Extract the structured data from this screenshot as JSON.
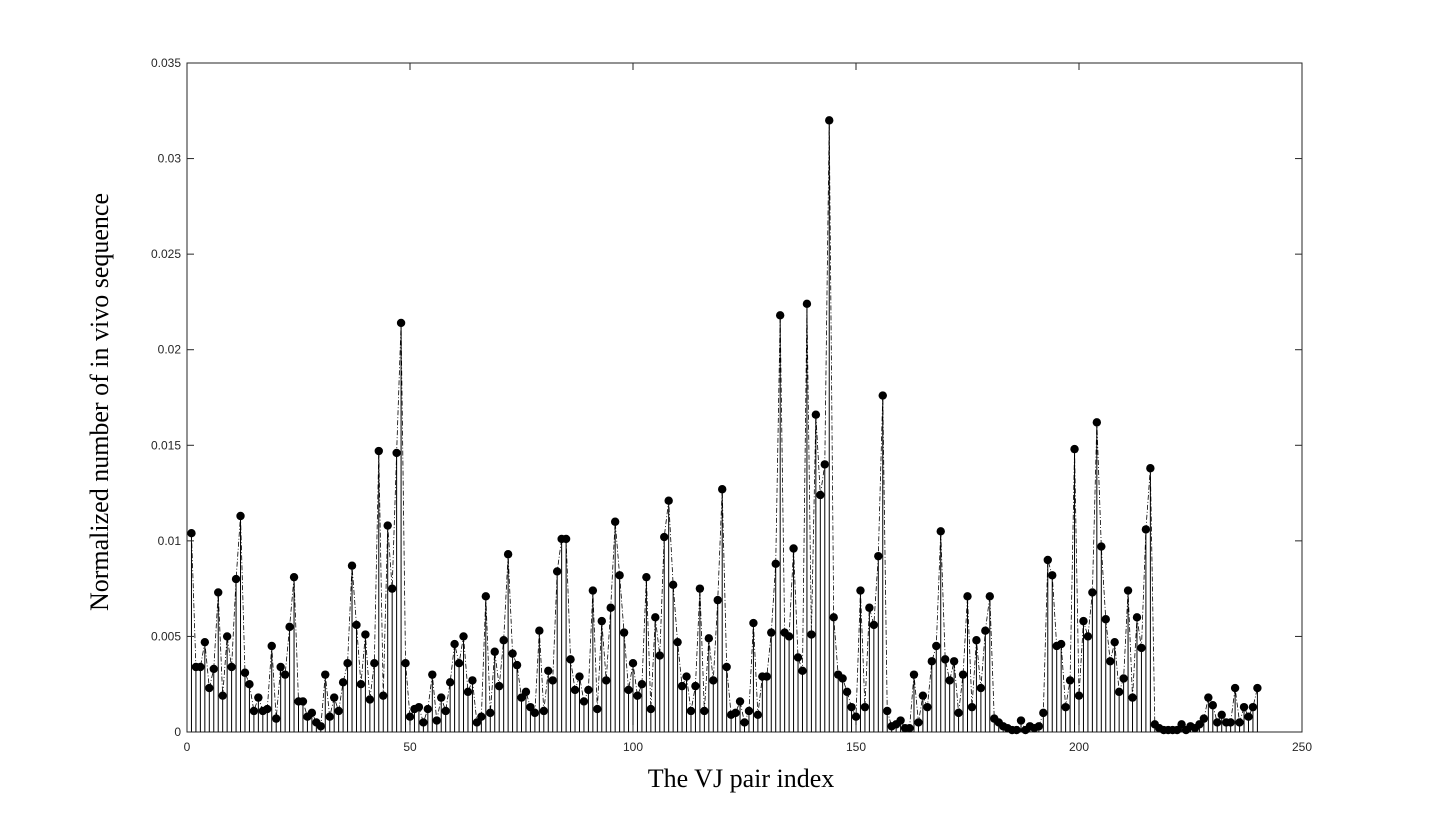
{
  "chart_data": {
    "type": "stem",
    "title": "",
    "xlabel": "The VJ pair index",
    "ylabel": "Normalized number of in vivo sequence",
    "xlim": [
      0,
      250
    ],
    "ylim": [
      0,
      0.035
    ],
    "xticks": [
      0,
      50,
      100,
      150,
      200,
      250
    ],
    "yticks": [
      0,
      0.005,
      0.01,
      0.015,
      0.02,
      0.025,
      0.03,
      0.035
    ],
    "xtick_labels": [
      "0",
      "50",
      "100",
      "150",
      "200",
      "250"
    ],
    "ytick_labels": [
      "0",
      "0.005",
      "0.01",
      "0.015",
      "0.02",
      "0.025",
      "0.03",
      "0.035"
    ],
    "grid": false,
    "legend": "none",
    "colors": {
      "marker": "#000000",
      "axis": "#262626",
      "background": "#ffffff"
    },
    "x": [
      1,
      2,
      3,
      4,
      5,
      6,
      7,
      8,
      9,
      10,
      11,
      12,
      13,
      14,
      15,
      16,
      17,
      18,
      19,
      20,
      21,
      22,
      23,
      24,
      25,
      26,
      27,
      28,
      29,
      30,
      31,
      32,
      33,
      34,
      35,
      36,
      37,
      38,
      39,
      40,
      41,
      42,
      43,
      44,
      45,
      46,
      47,
      48,
      49,
      50,
      51,
      52,
      53,
      54,
      55,
      56,
      57,
      58,
      59,
      60,
      61,
      62,
      63,
      64,
      65,
      66,
      67,
      68,
      69,
      70,
      71,
      72,
      73,
      74,
      75,
      76,
      77,
      78,
      79,
      80,
      81,
      82,
      83,
      84,
      85,
      86,
      87,
      88,
      89,
      90,
      91,
      92,
      93,
      94,
      95,
      96,
      97,
      98,
      99,
      100,
      101,
      102,
      103,
      104,
      105,
      106,
      107,
      108,
      109,
      110,
      111,
      112,
      113,
      114,
      115,
      116,
      117,
      118,
      119,
      120,
      121,
      122,
      123,
      124,
      125,
      126,
      127,
      128,
      129,
      130,
      131,
      132,
      133,
      134,
      135,
      136,
      137,
      138,
      139,
      140,
      141,
      142,
      143,
      144,
      145,
      146,
      147,
      148,
      149,
      150,
      151,
      152,
      153,
      154,
      155,
      156,
      157,
      158,
      159,
      160,
      161,
      162,
      163,
      164,
      165,
      166,
      167,
      168,
      169,
      170,
      171,
      172,
      173,
      174,
      175,
      176,
      177,
      178,
      179,
      180,
      181,
      182,
      183,
      184,
      185,
      186,
      187,
      188,
      189,
      190,
      191,
      192,
      193,
      194,
      195,
      196,
      197,
      198,
      199,
      200,
      201,
      202,
      203,
      204,
      205,
      206,
      207,
      208,
      209,
      210,
      211,
      212,
      213,
      214,
      215,
      216,
      217,
      218,
      219,
      220,
      221,
      222,
      223,
      224,
      225,
      226,
      227,
      228,
      229,
      230,
      231,
      232,
      233,
      234,
      235,
      236,
      237,
      238,
      239,
      240
    ],
    "values": [
      0.0104,
      0.0034,
      0.0034,
      0.0047,
      0.0023,
      0.0033,
      0.0073,
      0.0019,
      0.005,
      0.0034,
      0.008,
      0.0113,
      0.0031,
      0.0025,
      0.0011,
      0.0018,
      0.0011,
      0.0012,
      0.0045,
      0.0007,
      0.0034,
      0.003,
      0.0055,
      0.0081,
      0.0016,
      0.0016,
      0.0008,
      0.001,
      0.0005,
      0.0003,
      0.003,
      0.0008,
      0.0018,
      0.0011,
      0.0026,
      0.0036,
      0.0087,
      0.0056,
      0.0025,
      0.0051,
      0.0017,
      0.0036,
      0.0147,
      0.0019,
      0.0108,
      0.0075,
      0.0146,
      0.0214,
      0.0036,
      0.0008,
      0.0012,
      0.0013,
      0.0005,
      0.0012,
      0.003,
      0.0006,
      0.0018,
      0.0011,
      0.0026,
      0.0046,
      0.0036,
      0.005,
      0.0021,
      0.0027,
      0.0005,
      0.0008,
      0.0071,
      0.001,
      0.0042,
      0.0024,
      0.0048,
      0.0093,
      0.0041,
      0.0035,
      0.0018,
      0.0021,
      0.0013,
      0.001,
      0.0053,
      0.0011,
      0.0032,
      0.0027,
      0.0084,
      0.0101,
      0.0101,
      0.0038,
      0.0022,
      0.0029,
      0.0016,
      0.0022,
      0.0074,
      0.0012,
      0.0058,
      0.0027,
      0.0065,
      0.011,
      0.0082,
      0.0052,
      0.0022,
      0.0036,
      0.0019,
      0.0025,
      0.0081,
      0.0012,
      0.006,
      0.004,
      0.0102,
      0.0121,
      0.0077,
      0.0047,
      0.0024,
      0.0029,
      0.0011,
      0.0024,
      0.0075,
      0.0011,
      0.0049,
      0.0027,
      0.0069,
      0.0127,
      0.0034,
      0.0009,
      0.001,
      0.0016,
      0.0005,
      0.0011,
      0.0057,
      0.0009,
      0.0029,
      0.0029,
      0.0052,
      0.0088,
      0.0218,
      0.0052,
      0.005,
      0.0096,
      0.0039,
      0.0032,
      0.0224,
      0.0051,
      0.0166,
      0.0124,
      0.014,
      0.032,
      0.006,
      0.003,
      0.0028,
      0.0021,
      0.0013,
      0.0008,
      0.0074,
      0.0013,
      0.0065,
      0.0056,
      0.0092,
      0.0176,
      0.0011,
      0.0003,
      0.0004,
      0.0006,
      0.0002,
      0.0002,
      0.003,
      0.0005,
      0.0019,
      0.0013,
      0.0037,
      0.0045,
      0.0105,
      0.0038,
      0.0027,
      0.0037,
      0.001,
      0.003,
      0.0071,
      0.0013,
      0.0048,
      0.0023,
      0.0053,
      0.0071,
      0.0007,
      0.0005,
      0.0003,
      0.0002,
      0.0001,
      0.0001,
      0.0006,
      0.0001,
      0.0003,
      0.0002,
      0.0003,
      0.001,
      0.009,
      0.0082,
      0.0045,
      0.0046,
      0.0013,
      0.0027,
      0.0148,
      0.0019,
      0.0058,
      0.005,
      0.0073,
      0.0162,
      0.0097,
      0.0059,
      0.0037,
      0.0047,
      0.0021,
      0.0028,
      0.0074,
      0.0018,
      0.006,
      0.0044,
      0.0106,
      0.0138,
      0.0004,
      0.0002,
      0.0001,
      0.0001,
      0.0001,
      0.0001,
      0.0004,
      0.0001,
      0.0003,
      0.0002,
      0.0004,
      0.0007,
      0.0018,
      0.0014,
      0.0005,
      0.0009,
      0.0005,
      0.0005,
      0.0023,
      0.0005,
      0.0013,
      0.0008,
      0.0013,
      0.0023
    ]
  }
}
